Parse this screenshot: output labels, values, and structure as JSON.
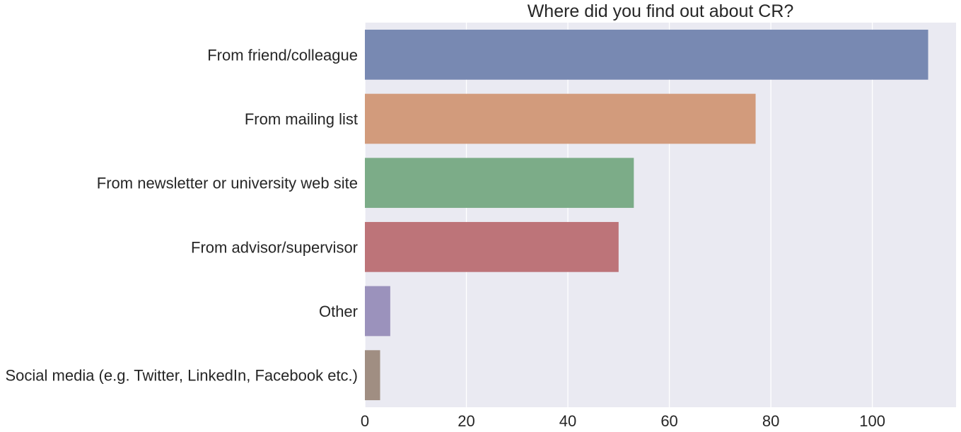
{
  "chart_data": {
    "type": "bar",
    "orientation": "horizontal",
    "title": "Where did you find out about CR?",
    "xlabel": "",
    "ylabel": "",
    "categories": [
      "From friend/colleague",
      "From mailing list",
      "From newsletter or university web site",
      "From advisor/supervisor",
      "Other",
      "Social media (e.g. Twitter, LinkedIn, Facebook etc.)"
    ],
    "values": [
      111,
      77,
      53,
      50,
      5,
      3
    ],
    "colors": [
      "#7889b2",
      "#d29b7c",
      "#7cac88",
      "#bd7479",
      "#9b92bc",
      "#a08e82"
    ],
    "xlim": [
      0,
      116.5
    ],
    "xticks": [
      0,
      20,
      40,
      60,
      80,
      100
    ],
    "xtick_labels": [
      "0",
      "20",
      "40",
      "60",
      "80",
      "100"
    ],
    "grid": true,
    "background": "#eaeaf2",
    "grid_color": "#ffffff",
    "legend": "none"
  }
}
